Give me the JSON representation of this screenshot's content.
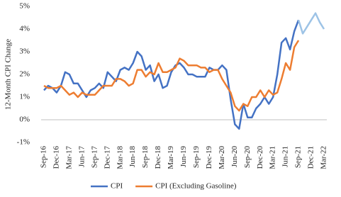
{
  "chart_data": {
    "type": "line",
    "y_label": "12-Month CPI Change",
    "categories": [
      "Sep-16",
      null,
      null,
      "Dec-16",
      null,
      null,
      "Mar-17",
      null,
      null,
      "Jun-17",
      null,
      null,
      "Sep-17",
      null,
      null,
      "Dec-17",
      null,
      null,
      "Mar-18",
      null,
      null,
      "Jun-18",
      null,
      null,
      "Sep-18",
      null,
      null,
      "Dec-18",
      null,
      null,
      "Mar-19",
      null,
      null,
      "Jun-19",
      null,
      null,
      "Sep-19",
      null,
      null,
      "Dec-19",
      null,
      null,
      "Mar-20",
      null,
      null,
      "Jun-20",
      null,
      null,
      "Sep-20",
      null,
      null,
      "Dec-20",
      null,
      null,
      "Mar-21",
      null,
      null,
      "Jun-21",
      null,
      null,
      "Sep-21",
      null,
      null,
      "Dec-21",
      null,
      null,
      "Mar-22"
    ],
    "series": [
      {
        "name": "CPI",
        "color": "#4472c4",
        "values": [
          1.3,
          1.5,
          1.4,
          1.2,
          1.5,
          2.1,
          2.0,
          1.6,
          1.6,
          1.3,
          1.0,
          1.3,
          1.4,
          1.6,
          1.4,
          2.1,
          1.9,
          1.7,
          2.2,
          2.3,
          2.2,
          2.5,
          3.0,
          2.8,
          2.2,
          2.4,
          1.7,
          2.0,
          1.4,
          1.5,
          2.1,
          2.4,
          2.5,
          2.3,
          2.0,
          2.0,
          1.9,
          1.9,
          1.9,
          2.3,
          2.2,
          2.2,
          2.4,
          2.2,
          0.9,
          -0.2,
          -0.4,
          0.7,
          0.1,
          0.1,
          0.5,
          0.7,
          1.0,
          0.7,
          1.0,
          2.0,
          3.4,
          3.6,
          3.1,
          3.9,
          4.4,
          null,
          null,
          null,
          null,
          null,
          null
        ]
      },
      {
        "name": "CPI (Excluding Gasoline)",
        "color": "#ed7d31",
        "values": [
          1.5,
          1.4,
          1.4,
          1.4,
          1.5,
          1.3,
          1.1,
          1.2,
          1.0,
          1.2,
          1.1,
          1.1,
          1.1,
          1.3,
          1.5,
          1.5,
          1.5,
          1.8,
          1.8,
          1.7,
          1.5,
          1.6,
          2.2,
          2.2,
          1.9,
          2.1,
          2.0,
          2.5,
          2.1,
          2.1,
          2.2,
          2.3,
          2.7,
          2.6,
          2.4,
          2.4,
          2.4,
          2.3,
          2.3,
          2.1,
          2.2,
          2.2,
          1.8,
          1.5,
          1.2,
          0.6,
          0.4,
          0.7,
          0.6,
          1.0,
          1.0,
          1.3,
          1.0,
          1.3,
          1.1,
          1.2,
          1.8,
          2.5,
          2.2,
          3.2,
          3.5,
          null,
          null,
          null,
          null,
          null,
          null
        ]
      },
      {
        "color": "#9dc3e6",
        "values": [
          null,
          null,
          null,
          null,
          null,
          null,
          null,
          null,
          null,
          null,
          null,
          null,
          null,
          null,
          null,
          null,
          null,
          null,
          null,
          null,
          null,
          null,
          null,
          null,
          null,
          null,
          null,
          null,
          null,
          null,
          null,
          null,
          null,
          null,
          null,
          null,
          null,
          null,
          null,
          null,
          null,
          null,
          null,
          null,
          null,
          null,
          null,
          null,
          null,
          null,
          null,
          null,
          null,
          null,
          null,
          null,
          null,
          null,
          null,
          null,
          4.4,
          3.8,
          4.1,
          4.4,
          4.7,
          4.3,
          4.0
        ]
      }
    ],
    "ylim": [
      -1,
      5
    ],
    "yticks": [
      {
        "value": -1,
        "label": "-1%"
      },
      {
        "value": 0,
        "label": "0%"
      },
      {
        "value": 1,
        "label": "1%"
      },
      {
        "value": 2,
        "label": "2%"
      },
      {
        "value": 3,
        "label": "3%"
      },
      {
        "value": 4,
        "label": "4%"
      },
      {
        "value": 5,
        "label": "5%"
      }
    ],
    "grid": false,
    "legend": "bottom"
  }
}
